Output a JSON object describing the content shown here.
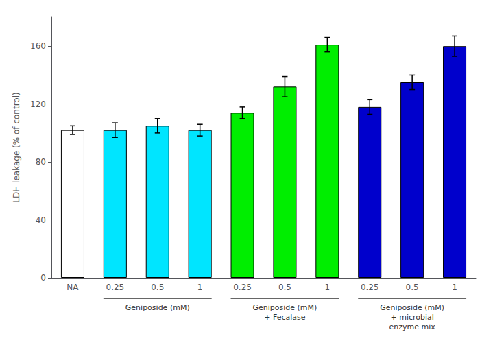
{
  "chart_data": {
    "type": "bar",
    "categories": [
      "NA",
      "0.25",
      "0.5",
      "1",
      "0.25",
      "0.5",
      "1",
      "0.25",
      "0.5",
      "1"
    ],
    "values": [
      102,
      102,
      105,
      102,
      114,
      132,
      161,
      118,
      135,
      160
    ],
    "errors": [
      3,
      5,
      5,
      4,
      4,
      7,
      5,
      5,
      5,
      7
    ],
    "colors": [
      "#ffffff",
      "#00e5ff",
      "#00e5ff",
      "#00e5ff",
      "#00ee00",
      "#00ee00",
      "#00ee00",
      "#0000cc",
      "#0000cc",
      "#0000cc"
    ],
    "ylabel": "LDH leakage (% of control)",
    "ylim": [
      0,
      180
    ],
    "yticks": [
      0,
      40,
      80,
      120,
      160
    ],
    "group_labels": [
      "Geniposide (mM)",
      "Geniposide (mM)\n+ Fecalase",
      "Geniposide (mM)\n+ microbial\nenzyme mix"
    ],
    "group_spans": [
      [
        1,
        3
      ],
      [
        4,
        6
      ],
      [
        7,
        9
      ]
    ],
    "grid": false
  }
}
